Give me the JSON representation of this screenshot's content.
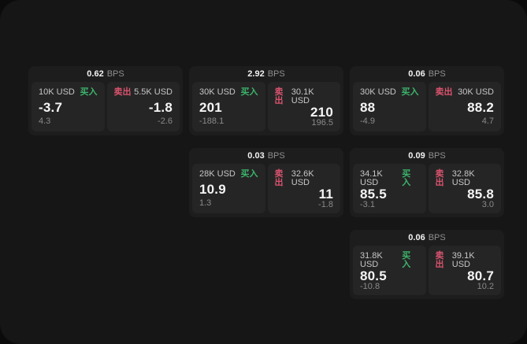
{
  "panel": {
    "outer_bg": "#0b0b0b",
    "bg": "#161616"
  },
  "colors": {
    "buy_green": "#3cb56c",
    "sell_red": "#d9536e",
    "card_bg": "#1d1d1d",
    "tile_bg": "#252525"
  },
  "labels": {
    "bps_unit": "BPS",
    "buy": "买入",
    "sell": "卖出"
  },
  "cards": [
    {
      "col": 1,
      "row": 1,
      "bps": "0.62",
      "buy": {
        "notional": "10K USD",
        "price": "-3.7",
        "delta": "4.3"
      },
      "sell": {
        "notional": "5.5K USD",
        "price": "-1.8",
        "delta": "-2.6"
      }
    },
    {
      "col": 2,
      "row": 1,
      "bps": "2.92",
      "buy": {
        "notional": "30K USD",
        "price": "201",
        "delta": "-188.1"
      },
      "sell": {
        "notional": "30.1K USD",
        "price": "210",
        "delta": "196.5"
      }
    },
    {
      "col": 3,
      "row": 1,
      "bps": "0.06",
      "buy": {
        "notional": "30K USD",
        "price": "88",
        "delta": "-4.9"
      },
      "sell": {
        "notional": "30K USD",
        "price": "88.2",
        "delta": "4.7"
      }
    },
    {
      "col": 2,
      "row": 2,
      "bps": "0.03",
      "buy": {
        "notional": "28K USD",
        "price": "10.9",
        "delta": "1.3"
      },
      "sell": {
        "notional": "32.6K USD",
        "price": "11",
        "delta": "-1.8"
      }
    },
    {
      "col": 3,
      "row": 2,
      "bps": "0.09",
      "buy": {
        "notional": "34.1K USD",
        "price": "85.5",
        "delta": "-3.1"
      },
      "sell": {
        "notional": "32.8K USD",
        "price": "85.8",
        "delta": "3.0"
      }
    },
    {
      "col": 3,
      "row": 3,
      "bps": "0.06",
      "buy": {
        "notional": "31.8K USD",
        "price": "80.5",
        "delta": "-10.8"
      },
      "sell": {
        "notional": "39.1K USD",
        "price": "80.7",
        "delta": "10.2"
      }
    }
  ]
}
